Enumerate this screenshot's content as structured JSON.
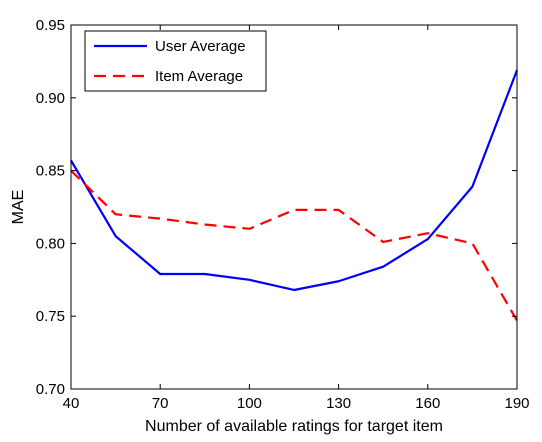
{
  "chart_data": {
    "type": "line",
    "title": "",
    "xlabel": "Number of available ratings for target item",
    "ylabel": "MAE",
    "xlim": [
      40,
      190
    ],
    "ylim": [
      0.7,
      0.95
    ],
    "x_ticks": [
      40,
      70,
      100,
      130,
      160,
      190
    ],
    "x_tick_labels": [
      "40",
      "70",
      "100",
      "130",
      "160",
      "190"
    ],
    "y_ticks": [
      0.7,
      0.75,
      0.8,
      0.85,
      0.9,
      0.95
    ],
    "y_tick_labels": [
      "0.70",
      "0.75",
      "0.80",
      "0.85",
      "0.90",
      "0.95"
    ],
    "grid": false,
    "legend_position": "top-left",
    "x": [
      40,
      55,
      70,
      85,
      100,
      115,
      130,
      145,
      160,
      175,
      190
    ],
    "series": [
      {
        "name": "User Average",
        "color": "#0000ff",
        "line_style": "solid",
        "values": [
          0.857,
          0.805,
          0.779,
          0.779,
          0.775,
          0.768,
          0.774,
          0.784,
          0.803,
          0.839,
          0.919
        ]
      },
      {
        "name": "Item Average",
        "color": "#ff0000",
        "line_style": "dashed",
        "values": [
          0.85,
          0.82,
          0.817,
          0.813,
          0.81,
          0.823,
          0.823,
          0.801,
          0.807,
          0.8,
          0.747
        ]
      }
    ]
  }
}
